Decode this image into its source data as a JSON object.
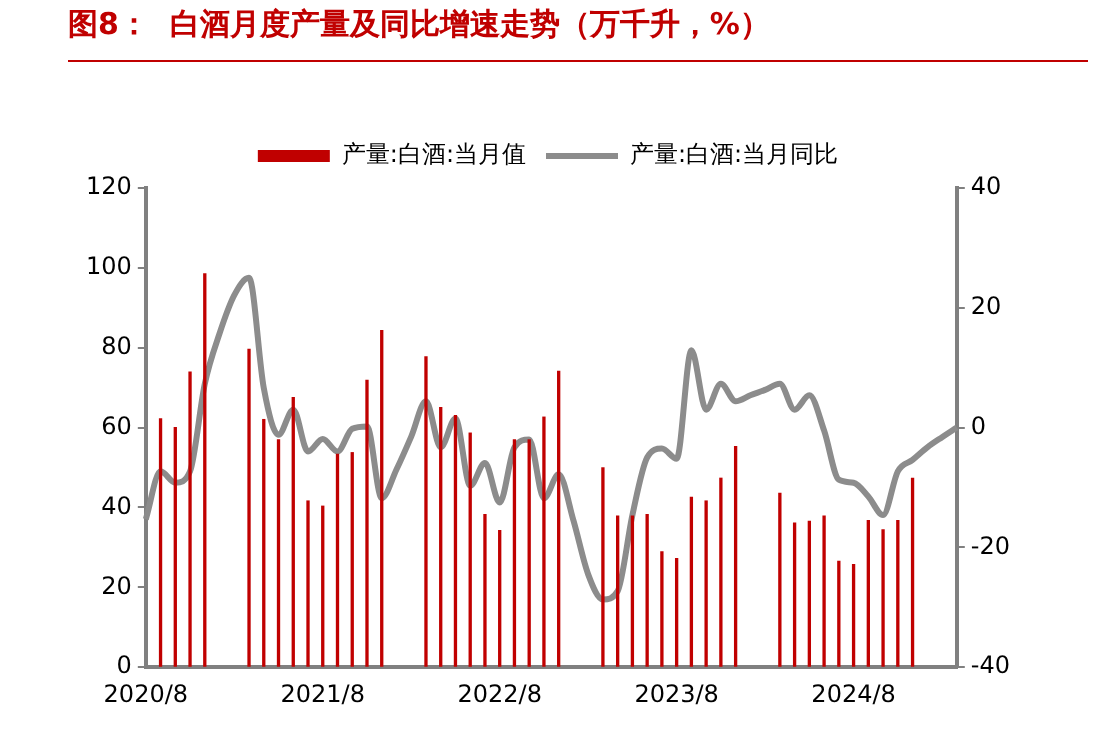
{
  "chart_data": {
    "type": "bar",
    "title": "图8：  白酒月度产量及同比增速走势（万千升，%）",
    "categories": [
      "2020/8",
      null,
      null,
      null,
      null,
      null,
      null,
      null,
      null,
      null,
      null,
      null,
      "2021/8",
      null,
      null,
      null,
      null,
      null,
      null,
      null,
      null,
      null,
      null,
      null,
      "2022/8",
      null,
      null,
      null,
      null,
      null,
      null,
      null,
      null,
      null,
      null,
      null,
      "2023/8",
      null,
      null,
      null,
      null,
      null,
      null,
      null,
      null,
      null,
      null,
      null,
      "2024/8",
      null,
      null,
      null,
      null,
      null,
      null,
      null
    ],
    "series": [
      {
        "name": "产量:白酒:当月值",
        "color": "#c00000",
        "values": [
          null,
          62.2,
          60,
          73.9,
          98.5,
          null,
          null,
          79.6,
          62,
          56.9,
          67.5,
          41.6,
          40.3,
          53.3,
          53.7,
          71.8,
          84.3,
          null,
          null,
          77.7,
          65,
          63,
          58.6,
          38.2,
          34.2,
          56.9,
          56.9,
          62.6,
          74.1,
          null,
          null,
          49.9,
          37.8,
          37.8,
          38.2,
          28.9,
          27.2,
          42.5,
          41.6,
          47.3,
          55.2,
          null,
          null,
          43.5,
          36.1,
          36.5,
          37.8,
          26.5,
          25.7,
          36.7,
          34.4,
          36.7,
          47.3,
          null,
          null,
          null
        ]
      },
      {
        "name": "产量:白酒:当月同比",
        "type": "line",
        "axis": "y2",
        "color": "#8c8c8c",
        "values": [
          -15.3,
          -7.3,
          -9.2,
          -7.3,
          7.3,
          15.7,
          22.1,
          25,
          6.6,
          -1.2,
          3,
          -4,
          -1.9,
          -4,
          -0.2,
          0.2,
          -11.8,
          -7,
          -1.5,
          4.4,
          -3.3,
          1.5,
          -9.7,
          -5.9,
          -12.5,
          -3.3,
          -2,
          -11.8,
          -7.8,
          -15.5,
          -24.5,
          -28.7,
          -27.3,
          -14.6,
          -5,
          -3.5,
          -5.2,
          12.9,
          3,
          7.3,
          4.4,
          5.4,
          6.3,
          7.3,
          3,
          5.4,
          -0.5,
          -8.7,
          -9.2,
          -11.5,
          -14.6,
          -7.3,
          -5.4,
          -3.3,
          -1.6,
          0
        ]
      }
    ],
    "ylim": [
      0,
      120
    ],
    "yticks": [
      0,
      20,
      40,
      60,
      80,
      100,
      120
    ],
    "y2lim": [
      -40,
      40
    ],
    "y2ticks": [
      -40,
      -20,
      0,
      20,
      40
    ],
    "legend": "top",
    "grid": false
  }
}
